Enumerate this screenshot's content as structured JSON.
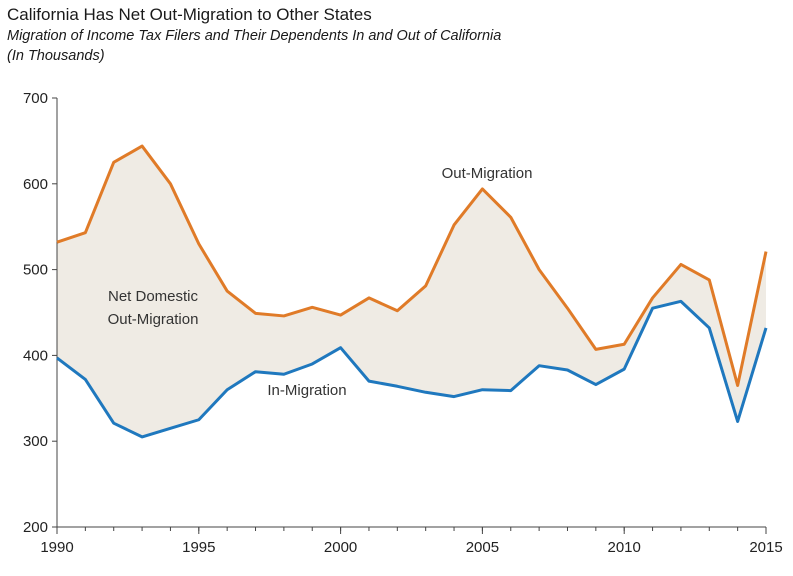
{
  "chart_data": {
    "type": "line",
    "title": "California Has Net Out-Migration to Other States",
    "subtitle_line1": "Migration of Income Tax Filers and Their Dependents In and Out of California",
    "subtitle_line2": "(In Thousands)",
    "xlabel": "",
    "ylabel": "",
    "xlim": [
      1990,
      2015
    ],
    "ylim": [
      200,
      700
    ],
    "y_ticks": [
      200,
      300,
      400,
      500,
      600,
      700
    ],
    "x_ticks": [
      1990,
      1995,
      2000,
      2005,
      2010,
      2015
    ],
    "grid": false,
    "legend": "none",
    "x": [
      1990,
      1991,
      1992,
      1993,
      1994,
      1995,
      1996,
      1997,
      1998,
      1999,
      2000,
      2001,
      2002,
      2003,
      2004,
      2005,
      2006,
      2007,
      2008,
      2009,
      2010,
      2011,
      2012,
      2013,
      2014,
      2015
    ],
    "series": [
      {
        "name": "Out-Migration",
        "color": "#e07b28",
        "values": [
          532,
          543,
          625,
          644,
          600,
          530,
          475,
          449,
          446,
          456,
          447,
          467,
          452,
          481,
          552,
          594,
          561,
          500,
          455,
          407,
          413,
          467,
          506,
          488,
          365,
          521
        ]
      },
      {
        "name": "In-Migration",
        "color": "#1f78be",
        "values": [
          397,
          372,
          321,
          305,
          315,
          325,
          360,
          381,
          378,
          390,
          409,
          370,
          364,
          357,
          352,
          360,
          359,
          388,
          383,
          366,
          384,
          455,
          463,
          432,
          323,
          432
        ]
      }
    ],
    "fill_between": {
      "color": "#efebe4",
      "label_line1": "Net Domestic",
      "label_line2": "Out-Migration"
    },
    "annotations": [
      "Out-Migration",
      "In-Migration"
    ]
  }
}
